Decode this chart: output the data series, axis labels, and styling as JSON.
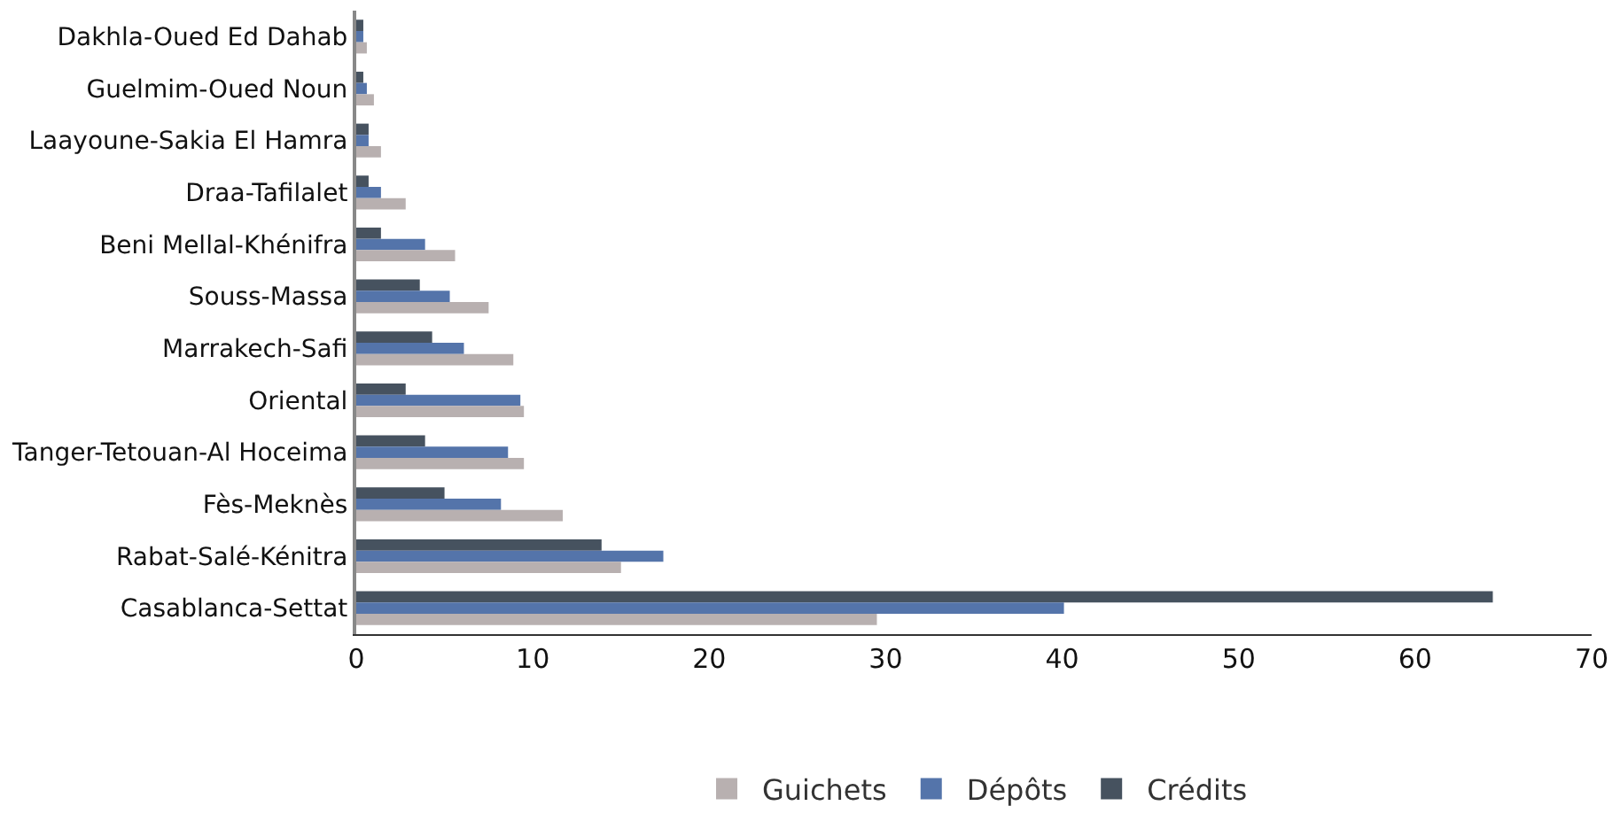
{
  "chart_data": {
    "type": "bar",
    "orientation": "horizontal",
    "categories": [
      "Dakhla-Oued Ed Dahab",
      "Guelmim-Oued Noun",
      "Laayoune-Sakia El Hamra",
      "Draa-Tafilalet",
      "Beni Mellal-Khénifra",
      "Souss-Massa",
      "Marrakech-Safi",
      "Oriental",
      "Tanger-Tetouan-Al Hoceima",
      "Fès-Meknès",
      "Rabat-Salé-Kénitra",
      "Casablanca-Settat"
    ],
    "series": [
      {
        "name": "Guichets",
        "color": "#b8b0b0",
        "values": [
          0.6,
          1.0,
          1.4,
          2.8,
          5.6,
          7.5,
          8.9,
          9.5,
          9.5,
          11.7,
          15.0,
          29.5
        ]
      },
      {
        "name": "Dépôts",
        "color": "#5474aa",
        "values": [
          0.4,
          0.6,
          0.7,
          1.4,
          3.9,
          5.3,
          6.1,
          9.3,
          8.6,
          8.2,
          17.4,
          40.1
        ]
      },
      {
        "name": "Crédits",
        "color": "#46525f",
        "values": [
          0.4,
          0.4,
          0.7,
          0.7,
          1.4,
          3.6,
          4.3,
          2.8,
          3.9,
          5.0,
          13.9,
          64.4
        ]
      }
    ],
    "xlim": [
      0,
      70
    ],
    "xticks": [
      0,
      10,
      20,
      30,
      40,
      50,
      60,
      70
    ],
    "legend": "bottom"
  }
}
